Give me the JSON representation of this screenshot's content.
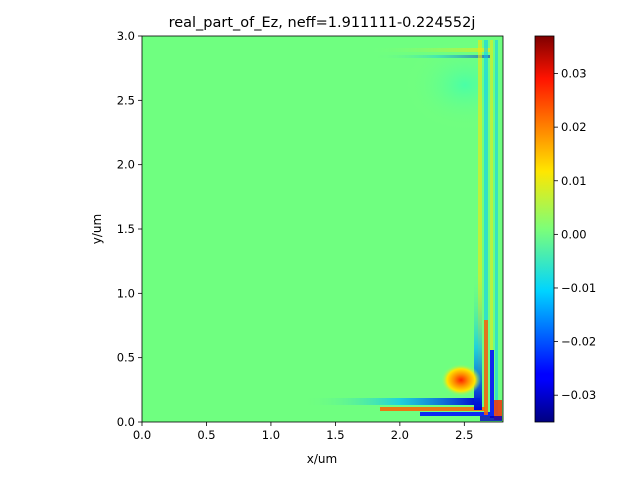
{
  "chart_data": {
    "type": "heatmap",
    "title": "real_part_of_Ez, neff=1.911111-0.224552j",
    "xlabel": "x/um",
    "ylabel": "y/um",
    "xlim": [
      0.0,
      2.8
    ],
    "ylim": [
      0.0,
      3.0
    ],
    "x_ticks": [
      "0.0",
      "0.5",
      "1.0",
      "1.5",
      "2.0",
      "2.5"
    ],
    "y_ticks": [
      "0.0",
      "0.5",
      "1.0",
      "1.5",
      "2.0",
      "2.5",
      "3.0"
    ],
    "colormap": "jet",
    "colorbar": {
      "vmin": -0.035,
      "vmax": 0.037,
      "ticks": [
        "0.03",
        "0.02",
        "0.01",
        "0.00",
        "−0.01",
        "−0.02",
        "−0.03"
      ]
    },
    "background_value": 0.0,
    "field_features": [
      {
        "description": "strong positive lobe near bottom-right corner",
        "x": 2.5,
        "y": 0.3,
        "value": 0.03
      },
      {
        "description": "negative horizontal band below lobe",
        "x": 2.4,
        "y": 0.15,
        "value": -0.03
      },
      {
        "description": "negative vertical band right of lobe",
        "x": 2.63,
        "y": 0.4,
        "value": -0.03
      },
      {
        "description": "oscillating fringes along right edge and top-right corner",
        "x": 2.7,
        "y": 2.8,
        "value": 0.006
      }
    ]
  }
}
